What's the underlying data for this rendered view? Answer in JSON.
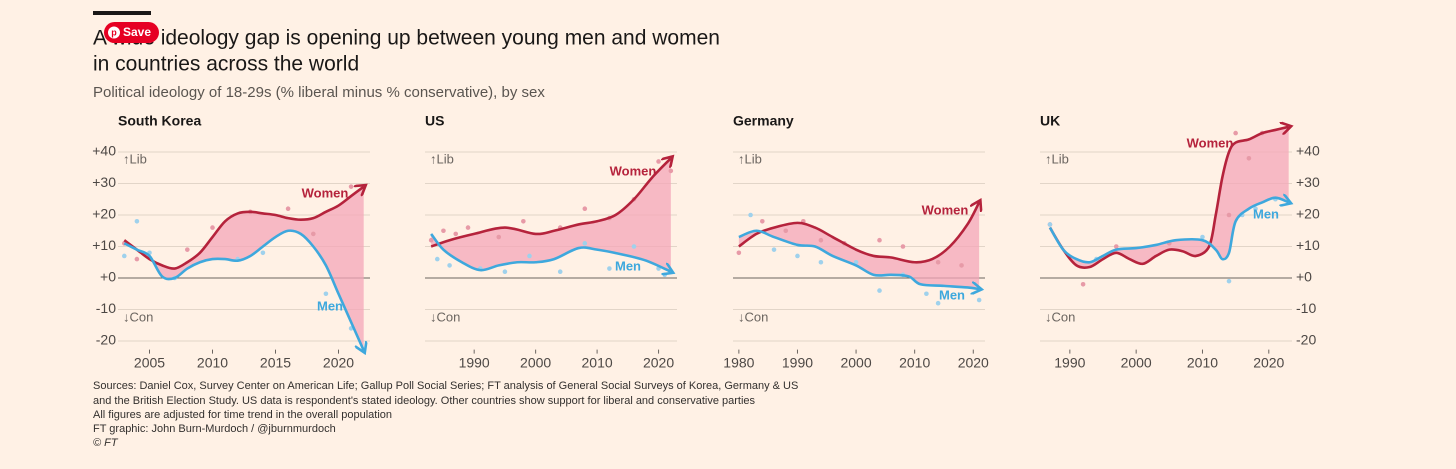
{
  "title_lines": [
    "A wide ideology gap is opening up between young men and women",
    "in countries across the world"
  ],
  "subtitle": "Political ideology of 18-29s (% liberal minus % conservative), by sex",
  "save_button": "Save",
  "footer": [
    "Sources: Daniel Cox, Survey Center on American Life; Gallup Poll Social Series; FT analysis of General Social Surveys of Korea, Germany & US",
    "and the British Election Study. US data is respondent's stated ideology. Other countries show support for liberal and conservative parties",
    "All figures are adjusted for time trend in the overall population",
    "FT graphic: John Burn-Murdoch / @jburnmurdoch",
    "© FT"
  ],
  "chart_data": [
    {
      "type": "line",
      "title": "South Korea",
      "y_axis": "left",
      "annotations": [
        "↑Lib",
        "↓Con"
      ],
      "xlim": [
        2002.5,
        2022.5
      ],
      "xticks": [
        2005,
        2010,
        2015,
        2020
      ],
      "ylim": [
        -24,
        50
      ],
      "yticks": [
        {
          "value": 40,
          "label": "+40"
        },
        {
          "value": 30,
          "label": "+30"
        },
        {
          "value": 20,
          "label": "+20"
        },
        {
          "value": 10,
          "label": "+10"
        },
        {
          "value": 0,
          "label": "+0"
        },
        -10,
        -20
      ],
      "series": [
        {
          "name": "Women",
          "color": "#b5233c",
          "dot_color": "#e79aa7",
          "x": [
            2003,
            2004,
            2005,
            2006,
            2007,
            2008,
            2009,
            2010,
            2011,
            2012,
            2013,
            2014,
            2015,
            2016,
            2017,
            2018,
            2019,
            2020,
            2021,
            2022
          ],
          "values": [
            12,
            9,
            6,
            4,
            3,
            5,
            8,
            13,
            18,
            20.5,
            21,
            20.5,
            20,
            19,
            18.5,
            19,
            21,
            23,
            26,
            29
          ],
          "dots": {
            "x": [
              2003,
              2004,
              2008,
              2010,
              2013,
              2016,
              2018,
              2021
            ],
            "values": [
              11,
              6,
              9,
              16,
              21,
              22,
              14,
              29
            ]
          }
        },
        {
          "name": "Men",
          "color": "#3ea8dd",
          "dot_color": "#9fd1ec",
          "x": [
            2003,
            2004,
            2005,
            2006,
            2007,
            2008,
            2009,
            2010,
            2011,
            2012,
            2013,
            2014,
            2015,
            2016,
            2017,
            2018,
            2019,
            2020,
            2021,
            2022
          ],
          "values": [
            11,
            9,
            7,
            0.5,
            0,
            3,
            5,
            6,
            6,
            5.5,
            7,
            10,
            13,
            15,
            14,
            10,
            4,
            -5,
            -14,
            -23
          ],
          "dots": {
            "x": [
              2003,
              2004,
              2005,
              2007,
              2012,
              2014,
              2019,
              2021
            ],
            "values": [
              7,
              18,
              8,
              0,
              6,
              8,
              -5,
              -16
            ]
          }
        }
      ]
    },
    {
      "type": "line",
      "title": "US",
      "y_axis": "none",
      "annotations": [
        "↑Lib",
        "↓Con"
      ],
      "xlim": [
        1982,
        2023
      ],
      "xticks": [
        1990,
        2000,
        2010,
        2020
      ],
      "ylim": [
        -24,
        50
      ],
      "yticks": [
        {
          "value": 40,
          "label": "+40"
        },
        {
          "value": 30,
          "label": "+30"
        },
        {
          "value": 20,
          "label": "+20"
        },
        {
          "value": 10,
          "label": "+10"
        },
        {
          "value": 0,
          "label": "+0"
        },
        -10,
        -20
      ],
      "series": [
        {
          "name": "Women",
          "color": "#b5233c",
          "dot_color": "#e79aa7",
          "x": [
            1983,
            1986,
            1990,
            1995,
            2000,
            2003,
            2007,
            2010,
            2013,
            2016,
            2019,
            2022
          ],
          "values": [
            10,
            12,
            14,
            16,
            14,
            15,
            17,
            18,
            20,
            25,
            32,
            38
          ],
          "dots": {
            "x": [
              1983,
              1985,
              1987,
              1989,
              1994,
              1998,
              2004,
              2008,
              2012,
              2016,
              2020,
              2022
            ],
            "values": [
              12,
              15,
              14,
              16,
              13,
              18,
              16,
              22,
              19,
              25,
              37,
              34
            ]
          }
        },
        {
          "name": "Men",
          "color": "#3ea8dd",
          "dot_color": "#9fd1ec",
          "x": [
            1983,
            1985,
            1988,
            1991,
            1994,
            1997,
            2000,
            2003,
            2007,
            2010,
            2014,
            2018,
            2022
          ],
          "values": [
            14,
            9,
            5,
            2.5,
            4,
            5,
            5,
            6,
            9.5,
            9,
            7.5,
            5.5,
            2
          ],
          "dots": {
            "x": [
              1984,
              1986,
              1991,
              1995,
              1999,
              2004,
              2008,
              2012,
              2016,
              2020,
              2021
            ],
            "values": [
              6,
              4,
              3,
              2,
              7,
              2,
              11,
              3,
              10,
              3,
              1
            ]
          }
        }
      ]
    },
    {
      "type": "line",
      "title": "Germany",
      "y_axis": "none",
      "annotations": [
        "↑Lib",
        "↓Con"
      ],
      "xlim": [
        1979,
        2022
      ],
      "xticks": [
        1980,
        1990,
        2000,
        2010,
        2020
      ],
      "ylim": [
        -24,
        50
      ],
      "yticks": [
        {
          "value": 40,
          "label": "+40"
        },
        {
          "value": 30,
          "label": "+30"
        },
        {
          "value": 20,
          "label": "+20"
        },
        {
          "value": 10,
          "label": "+10"
        },
        {
          "value": 0,
          "label": "+0"
        },
        -10,
        -20
      ],
      "series": [
        {
          "name": "Women",
          "color": "#b5233c",
          "dot_color": "#e79aa7",
          "x": [
            1980,
            1983,
            1986,
            1990,
            1993,
            1996,
            2000,
            2003,
            2006,
            2010,
            2013,
            2016,
            2019,
            2021
          ],
          "values": [
            10,
            14,
            16,
            17.5,
            16,
            13,
            9,
            7,
            6.5,
            5,
            6,
            10,
            17,
            24
          ],
          "dots": {
            "x": [
              1980,
              1984,
              1988,
              1991,
              1994,
              1998,
              2004,
              2008,
              2014,
              2018
            ],
            "values": [
              8,
              18,
              15,
              18,
              12,
              11,
              12,
              10,
              5,
              4
            ]
          }
        },
        {
          "name": "Men",
          "color": "#3ea8dd",
          "dot_color": "#9fd1ec",
          "x": [
            1980,
            1983,
            1986,
            1990,
            1993,
            1996,
            2000,
            2003,
            2006,
            2009,
            2011,
            2015,
            2019,
            2021
          ],
          "values": [
            13,
            15,
            13,
            10.5,
            10,
            7,
            4,
            1,
            1,
            0.5,
            -2,
            -2.5,
            -3,
            -3.5
          ],
          "dots": {
            "x": [
              1982,
              1986,
              1990,
              1994,
              2000,
              2004,
              2008,
              2012,
              2014,
              2021
            ],
            "values": [
              20,
              9,
              7,
              5,
              5,
              -4,
              1,
              -5,
              -8,
              -7
            ]
          }
        }
      ]
    },
    {
      "type": "line",
      "title": "UK",
      "y_axis": "right",
      "annotations": [
        "↑Lib",
        "↓Con"
      ],
      "xlim": [
        1985.5,
        2023.5
      ],
      "xticks": [
        1990,
        2000,
        2010,
        2020
      ],
      "ylim": [
        -24,
        50
      ],
      "yticks": [
        {
          "value": 40,
          "label": "+40"
        },
        {
          "value": 30,
          "label": "+30"
        },
        {
          "value": 20,
          "label": "+20"
        },
        {
          "value": 10,
          "label": "+10"
        },
        {
          "value": 0,
          "label": "+0"
        },
        -10,
        -20
      ],
      "series": [
        {
          "name": "Women",
          "color": "#b5233c",
          "dot_color": "#e79aa7",
          "x": [
            1987,
            1989,
            1991,
            1993,
            1995,
            1997,
            1999,
            2001,
            2003,
            2005,
            2007,
            2009,
            2011,
            2012,
            2013,
            2014,
            2015,
            2017,
            2019,
            2021,
            2023
          ],
          "values": [
            16,
            9,
            4,
            3.5,
            6,
            8,
            6,
            4.5,
            7,
            9,
            8.5,
            7,
            10,
            20,
            32,
            40,
            43,
            44,
            46,
            47,
            48
          ],
          "dots": {
            "x": [
              1987,
              1992,
              1997,
              2005,
              2014,
              2015,
              2017,
              2019
            ],
            "values": [
              17,
              -2,
              10,
              11,
              20,
              46,
              38,
              46
            ]
          }
        },
        {
          "name": "Men",
          "color": "#3ea8dd",
          "dot_color": "#9fd1ec",
          "x": [
            1987,
            1989,
            1991,
            1993,
            1995,
            1997,
            2000,
            2003,
            2006,
            2010,
            2012,
            2013,
            2014,
            2015,
            2017,
            2019,
            2021,
            2023
          ],
          "values": [
            16,
            9,
            6,
            5,
            7,
            9,
            9.5,
            10.5,
            12,
            12,
            9,
            6,
            8,
            18,
            22,
            24,
            25.5,
            24
          ],
          "dots": {
            "x": [
              1987,
              1994,
              2010,
              2014,
              2016,
              2018,
              2021
            ],
            "values": [
              17,
              6,
              13,
              -1,
              20,
              22,
              25
            ]
          }
        }
      ]
    }
  ]
}
